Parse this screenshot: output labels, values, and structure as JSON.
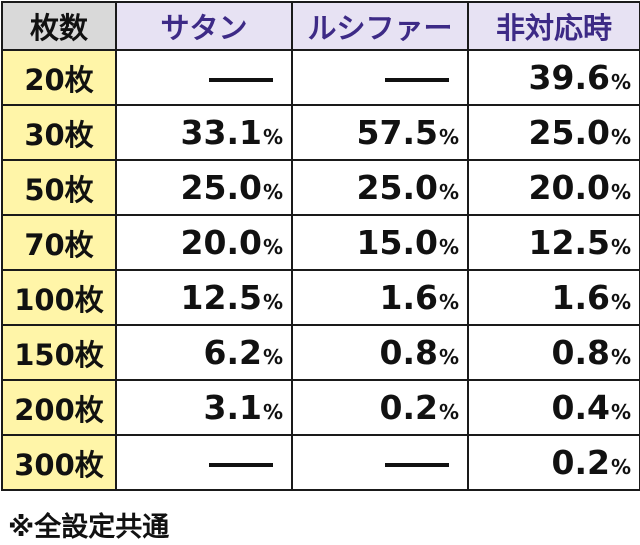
{
  "header": {
    "col0": "枚数",
    "col1": "サタン",
    "col2": "ルシファー",
    "col3": "非対応時"
  },
  "rows": [
    {
      "label": "20枚",
      "satan": "",
      "lucifer": "",
      "other": "39.6"
    },
    {
      "label": "30枚",
      "satan": "33.1",
      "lucifer": "57.5",
      "other": "25.0"
    },
    {
      "label": "50枚",
      "satan": "25.0",
      "lucifer": "25.0",
      "other": "20.0"
    },
    {
      "label": "70枚",
      "satan": "20.0",
      "lucifer": "15.0",
      "other": "12.5"
    },
    {
      "label": "100枚",
      "satan": "12.5",
      "lucifer": "1.6",
      "other": "1.6"
    },
    {
      "label": "150枚",
      "satan": "6.2",
      "lucifer": "0.8",
      "other": "0.8"
    },
    {
      "label": "200枚",
      "satan": "3.1",
      "lucifer": "0.2",
      "other": "0.4"
    },
    {
      "label": "300枚",
      "satan": "",
      "lucifer": "",
      "other": "0.2"
    }
  ],
  "unit": "%",
  "footnote": "※全設定共通",
  "colors": {
    "header_bg": "#d9d9d9",
    "header_purple_bg": "#e7e2f3",
    "header_purple_text": "#3d2a86",
    "row_label_bg": "#fff5a8",
    "border": "#1a1a1a"
  }
}
